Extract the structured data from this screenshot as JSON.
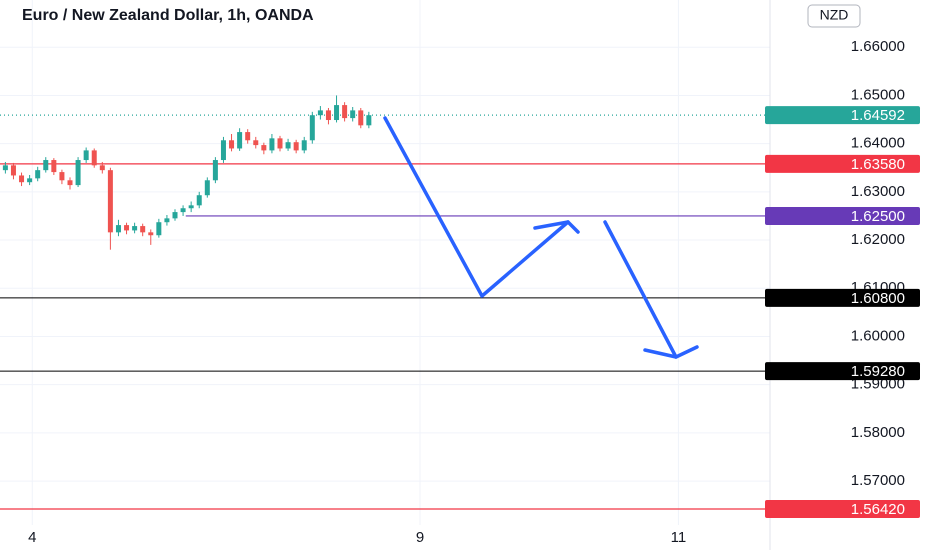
{
  "chart_data": {
    "type": "candlestick",
    "title": "Euro / New Zealand Dollar, 1h, OANDA",
    "currency": "NZD",
    "up_color": "#26a69a",
    "down_color": "#ef5350",
    "x": [
      -5,
      -3.5,
      -2,
      -0.5,
      1,
      2.5,
      4,
      5.5,
      7,
      8.5,
      10,
      11.5,
      13,
      14.5,
      16,
      17.5,
      19,
      20.5,
      22,
      23.5,
      25,
      26.5,
      28,
      29.5,
      31,
      32.5,
      34,
      35.5,
      37,
      38.5,
      40,
      41.5,
      43,
      44.5,
      46,
      47.5,
      49,
      50.5,
      52,
      53.5,
      55,
      56.5,
      58,
      59.5,
      61,
      62.5
    ],
    "open": [
      1.6345,
      1.6355,
      1.6334,
      1.632,
      1.6328,
      1.6345,
      1.6366,
      1.6341,
      1.6324,
      1.6314,
      1.6366,
      1.6386,
      1.6355,
      1.6345,
      1.6216,
      1.6231,
      1.622,
      1.6229,
      1.6216,
      1.621,
      1.6237,
      1.6245,
      1.6258,
      1.6266,
      1.6272,
      1.6293,
      1.6324,
      1.6366,
      1.6407,
      1.639,
      1.6424,
      1.6407,
      1.6397,
      1.6386,
      1.6411,
      1.639,
      1.6403,
      1.6386,
      1.6407,
      1.6459,
      1.6469,
      1.6449,
      1.648,
      1.6453,
      1.6469,
      1.6438
    ],
    "high": [
      1.6362,
      1.636,
      1.634,
      1.6335,
      1.6352,
      1.6372,
      1.637,
      1.6346,
      1.633,
      1.6372,
      1.6392,
      1.639,
      1.6362,
      1.635,
      1.6242,
      1.6236,
      1.6236,
      1.6234,
      1.6222,
      1.6244,
      1.6252,
      1.6264,
      1.6272,
      1.628,
      1.63,
      1.633,
      1.6372,
      1.6414,
      1.642,
      1.6432,
      1.643,
      1.6414,
      1.6402,
      1.642,
      1.6416,
      1.641,
      1.6408,
      1.6414,
      1.6466,
      1.6478,
      1.6474,
      1.65,
      1.6486,
      1.6476,
      1.6474,
      1.6466
    ],
    "low": [
      1.6338,
      1.6326,
      1.6312,
      1.6314,
      1.6322,
      1.634,
      1.6335,
      1.6316,
      1.6305,
      1.631,
      1.636,
      1.635,
      1.6338,
      1.618,
      1.6208,
      1.6212,
      1.6214,
      1.6208,
      1.619,
      1.6205,
      1.623,
      1.624,
      1.625,
      1.6258,
      1.6266,
      1.6288,
      1.6318,
      1.636,
      1.6384,
      1.6385,
      1.64,
      1.639,
      1.6378,
      1.638,
      1.6384,
      1.6385,
      1.638,
      1.638,
      1.64,
      1.645,
      1.644,
      1.6444,
      1.6446,
      1.6446,
      1.6432,
      1.6432
    ],
    "close": [
      1.6355,
      1.6334,
      1.632,
      1.6328,
      1.6345,
      1.6366,
      1.6341,
      1.6324,
      1.6314,
      1.6366,
      1.6386,
      1.6355,
      1.6345,
      1.6216,
      1.6231,
      1.622,
      1.6229,
      1.6216,
      1.621,
      1.6237,
      1.6245,
      1.6258,
      1.6266,
      1.6272,
      1.6293,
      1.6324,
      1.6366,
      1.6407,
      1.639,
      1.6424,
      1.6407,
      1.6397,
      1.6386,
      1.6411,
      1.639,
      1.6403,
      1.6386,
      1.6407,
      1.6459,
      1.6469,
      1.6449,
      1.648,
      1.6453,
      1.6469,
      1.6438,
      1.6459
    ],
    "xlim": [
      -6,
      137
    ],
    "xticks": [
      {
        "value": 0,
        "label": "4"
      },
      {
        "value": 72,
        "label": "9"
      },
      {
        "value": 120,
        "label": "11"
      }
    ],
    "ylim": [
      1.5557,
      1.6698
    ],
    "yticks": [
      {
        "value": 1.66,
        "label": "1.66000"
      },
      {
        "value": 1.65,
        "label": "1.65000"
      },
      {
        "value": 1.64,
        "label": "1.64000"
      },
      {
        "value": 1.63,
        "label": "1.63000"
      },
      {
        "value": 1.62,
        "label": "1.62000"
      },
      {
        "value": 1.61,
        "label": "1.61000"
      },
      {
        "value": 1.6,
        "label": "1.60000"
      },
      {
        "value": 1.59,
        "label": "1.59000"
      },
      {
        "value": 1.58,
        "label": "1.58000"
      },
      {
        "value": 1.57,
        "label": "1.57000"
      }
    ],
    "grid": true,
    "levels": [
      {
        "value": 1.64592,
        "label": "1.64592",
        "color": "#26a69a",
        "style": "dotted"
      },
      {
        "value": 1.6358,
        "label": "1.63580",
        "color": "#f23645",
        "style": "solid"
      },
      {
        "value": 1.625,
        "label": "1.62500",
        "color": "#673ab7",
        "style": "solid",
        "from": 28.5
      },
      {
        "value": 1.608,
        "label": "1.60800",
        "color": "#000000",
        "style": "solid"
      },
      {
        "value": 1.5928,
        "label": "1.59280",
        "color": "#000000",
        "style": "solid"
      },
      {
        "value": 1.5642,
        "label": "1.56420",
        "color": "#f23645",
        "style": "solid"
      }
    ]
  }
}
